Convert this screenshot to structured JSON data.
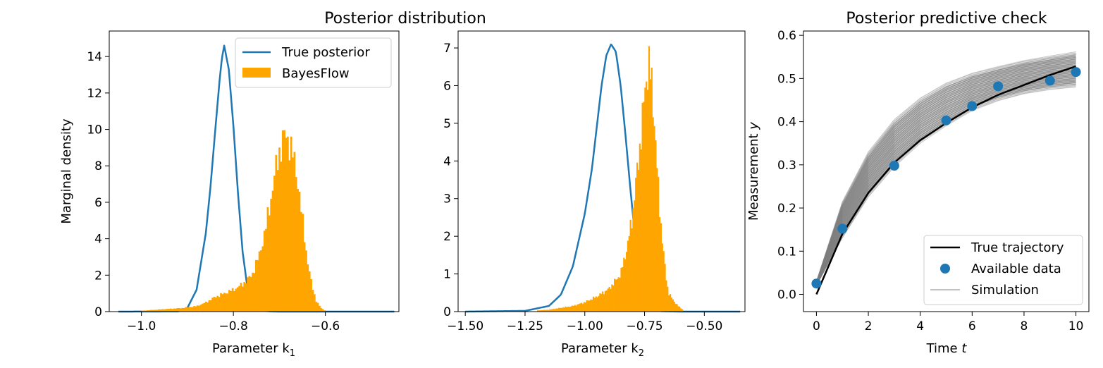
{
  "suptitle": "Posterior distribution",
  "colors": {
    "posterior": "#1f77b4",
    "bayesflow": "#ffa500",
    "truth": "#000000",
    "simulation": "#808080",
    "data": "#1f77b4"
  },
  "chart_data": [
    {
      "type": "area",
      "xlabel": "Parameter k_1",
      "xlabel_parts": {
        "main": "Parameter k",
        "sub": "1"
      },
      "ylabel": "Marginal density",
      "xlim": [
        -1.07,
        -0.44
      ],
      "ylim": [
        0,
        15.4
      ],
      "xticks": [
        -1.0,
        -0.8,
        -0.6
      ],
      "xtick_labels": [
        "−1.0",
        "−0.8",
        "−0.6"
      ],
      "yticks": [
        0,
        2,
        4,
        6,
        8,
        10,
        12,
        14
      ],
      "ytick_labels": [
        "0",
        "2",
        "4",
        "6",
        "8",
        "10",
        "12",
        "14"
      ],
      "legend": {
        "position": "upper right",
        "entries": [
          "True posterior",
          "BayesFlow"
        ]
      },
      "series": [
        {
          "name": "True posterior",
          "kind": "line",
          "x": [
            -1.05,
            -0.92,
            -0.9,
            -0.88,
            -0.86,
            -0.85,
            -0.84,
            -0.83,
            -0.825,
            -0.82,
            -0.81,
            -0.8,
            -0.79,
            -0.78,
            -0.77,
            -0.76,
            -0.74,
            -0.72,
            -0.7,
            -0.6,
            -0.45
          ],
          "values": [
            0,
            0.01,
            0.2,
            1.2,
            4.3,
            6.8,
            9.8,
            12.7,
            13.9,
            14.6,
            13.3,
            10.2,
            6.5,
            3.3,
            1.4,
            0.45,
            0.05,
            0.01,
            0,
            0,
            0
          ]
        },
        {
          "name": "BayesFlow",
          "kind": "histogram",
          "x": [
            -1.0,
            -0.97,
            -0.94,
            -0.91,
            -0.88,
            -0.86,
            -0.84,
            -0.82,
            -0.8,
            -0.78,
            -0.76,
            -0.745,
            -0.73,
            -0.72,
            -0.71,
            -0.7,
            -0.69,
            -0.68,
            -0.67,
            -0.66,
            -0.65,
            -0.64,
            -0.63,
            -0.62,
            -0.61,
            -0.6
          ],
          "values": [
            0.05,
            0.1,
            0.15,
            0.2,
            0.3,
            0.5,
            0.8,
            1.0,
            1.2,
            1.5,
            2.0,
            3.0,
            4.5,
            6.0,
            7.5,
            8.8,
            9.6,
            9.5,
            8.5,
            7.2,
            5.0,
            3.0,
            1.5,
            0.6,
            0.2,
            0.05
          ]
        }
      ]
    },
    {
      "type": "area",
      "xlabel": "Parameter k_2",
      "xlabel_parts": {
        "main": "Parameter k",
        "sub": "2"
      },
      "ylabel": "",
      "xlim": [
        -1.53,
        -0.33
      ],
      "ylim": [
        0,
        7.45
      ],
      "xticks": [
        -1.5,
        -1.25,
        -1.0,
        -0.75,
        -0.5
      ],
      "xtick_labels": [
        "−1.50",
        "−1.25",
        "−1.00",
        "−0.75",
        "−0.50"
      ],
      "yticks": [
        0,
        1,
        2,
        3,
        4,
        5,
        6,
        7
      ],
      "ytick_labels": [
        "0",
        "1",
        "2",
        "3",
        "4",
        "5",
        "6",
        "7"
      ],
      "series": [
        {
          "name": "True posterior",
          "kind": "line",
          "x": [
            -1.5,
            -1.25,
            -1.15,
            -1.1,
            -1.05,
            -1.0,
            -0.97,
            -0.95,
            -0.93,
            -0.91,
            -0.89,
            -0.87,
            -0.85,
            -0.83,
            -0.81,
            -0.79,
            -0.77,
            -0.75,
            -0.72,
            -0.68,
            -0.6,
            -0.35
          ],
          "values": [
            0,
            0.02,
            0.15,
            0.45,
            1.2,
            2.6,
            3.8,
            4.9,
            6.0,
            6.8,
            7.1,
            6.9,
            6.0,
            4.7,
            3.3,
            2.0,
            1.0,
            0.45,
            0.1,
            0.01,
            0,
            0
          ]
        },
        {
          "name": "BayesFlow",
          "kind": "histogram",
          "x": [
            -1.2,
            -1.15,
            -1.1,
            -1.05,
            -1.0,
            -0.95,
            -0.9,
            -0.85,
            -0.82,
            -0.8,
            -0.78,
            -0.76,
            -0.75,
            -0.74,
            -0.73,
            -0.72,
            -0.71,
            -0.7,
            -0.69,
            -0.68,
            -0.67,
            -0.66,
            -0.65,
            -0.63,
            -0.61,
            -0.59
          ],
          "values": [
            0.03,
            0.05,
            0.1,
            0.15,
            0.25,
            0.4,
            0.6,
            1.0,
            1.8,
            2.6,
            3.8,
            5.0,
            5.8,
            6.4,
            6.5,
            6.0,
            5.2,
            4.0,
            3.0,
            2.2,
            1.5,
            0.9,
            0.5,
            0.3,
            0.15,
            0.05
          ]
        }
      ]
    },
    {
      "type": "line",
      "title": "Posterior predictive check",
      "xlabel": "Time t",
      "xlabel_parts": {
        "main": "Time ",
        "italic": "t"
      },
      "ylabel": "Measurement y",
      "ylabel_parts": {
        "main": "Measurement ",
        "italic": "y"
      },
      "xlim": [
        -0.5,
        10.5
      ],
      "ylim": [
        -0.04,
        0.61
      ],
      "xticks": [
        0,
        2,
        4,
        6,
        8,
        10
      ],
      "xtick_labels": [
        "0",
        "2",
        "4",
        "6",
        "8",
        "10"
      ],
      "yticks": [
        0.0,
        0.1,
        0.2,
        0.3,
        0.4,
        0.5,
        0.6
      ],
      "ytick_labels": [
        "0.0",
        "0.1",
        "0.2",
        "0.3",
        "0.4",
        "0.5",
        "0.6"
      ],
      "legend": {
        "position": "lower right",
        "entries": [
          "True trajectory",
          "Available data",
          "Simulation"
        ]
      },
      "series": [
        {
          "name": "True trajectory",
          "kind": "line",
          "x": [
            0,
            1,
            2,
            3,
            4,
            5,
            6,
            7,
            8,
            9,
            10
          ],
          "values": [
            0.0,
            0.14,
            0.235,
            0.305,
            0.357,
            0.397,
            0.433,
            0.462,
            0.485,
            0.508,
            0.528
          ]
        },
        {
          "name": "Available data",
          "kind": "scatter",
          "x": [
            0,
            1,
            3,
            5,
            6,
            7,
            9,
            10
          ],
          "values": [
            0.025,
            0.152,
            0.298,
            0.403,
            0.436,
            0.482,
            0.495,
            0.515
          ]
        },
        {
          "name": "Simulation",
          "kind": "band",
          "x": [
            0,
            1,
            2,
            3,
            4,
            5,
            6,
            7,
            8,
            9,
            10
          ],
          "low": [
            0.02,
            0.13,
            0.225,
            0.295,
            0.35,
            0.39,
            0.425,
            0.448,
            0.464,
            0.474,
            0.48
          ],
          "high": [
            0.03,
            0.215,
            0.33,
            0.405,
            0.455,
            0.49,
            0.513,
            0.528,
            0.542,
            0.552,
            0.562
          ]
        }
      ]
    }
  ]
}
